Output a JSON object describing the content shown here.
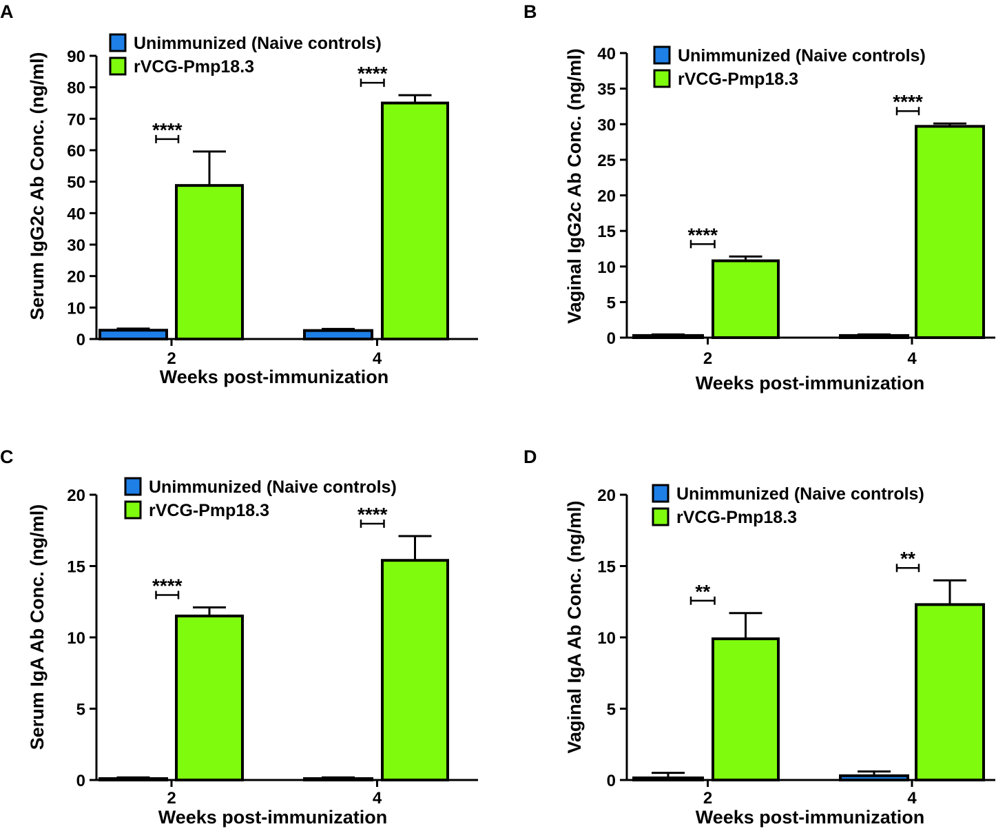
{
  "colors": {
    "unimmunized": "#1e7fe6",
    "vaccine": "#7ffc0e"
  },
  "chart_data": [
    {
      "panel": "A",
      "type": "bar",
      "ylabel": "Serum IgG2c Ab Conc. (ng/ml)",
      "xlabel": "Weeks post-immunization",
      "categories": [
        "2",
        "4"
      ],
      "ylim": [
        0,
        90
      ],
      "yticks": [
        0,
        10,
        20,
        30,
        40,
        50,
        60,
        70,
        80,
        90
      ],
      "legend": [
        "Unimmunized (Naive controls)",
        "rVCG-Pmp18.3"
      ],
      "series": [
        {
          "name": "Unimmunized (Naive controls)",
          "values": [
            2.8,
            2.7
          ],
          "errors": [
            0.5,
            0.5
          ]
        },
        {
          "name": "rVCG-Pmp18.3",
          "values": [
            48.8,
            75.0
          ],
          "errors": [
            10.8,
            2.5
          ]
        }
      ],
      "significance": [
        "****",
        "****"
      ]
    },
    {
      "panel": "B",
      "type": "bar",
      "ylabel": "Vaginal IgG2c Ab Conc. (ng/ml)",
      "xlabel": "Weeks post-immunization",
      "categories": [
        "2",
        "4"
      ],
      "ylim": [
        0,
        40
      ],
      "yticks": [
        0,
        5,
        10,
        15,
        20,
        25,
        30,
        35,
        40
      ],
      "legend": [
        "Unimmunized (Naive controls)",
        "rVCG-Pmp18.3"
      ],
      "series": [
        {
          "name": "Unimmunized (Naive controls)",
          "values": [
            0.3,
            0.3
          ],
          "errors": [
            0.15,
            0.15
          ]
        },
        {
          "name": "rVCG-Pmp18.3",
          "values": [
            10.8,
            29.7
          ],
          "errors": [
            0.6,
            0.4
          ]
        }
      ],
      "significance": [
        "****",
        "****"
      ]
    },
    {
      "panel": "C",
      "type": "bar",
      "ylabel": "Serum IgA Ab Conc. (ng/ml)",
      "xlabel": "Weeks post-immunization",
      "categories": [
        "2",
        "4"
      ],
      "ylim": [
        0,
        20
      ],
      "yticks": [
        0,
        5,
        10,
        15,
        20
      ],
      "legend": [
        "Unimmunized (Naive controls)",
        "rVCG-Pmp18.3"
      ],
      "series": [
        {
          "name": "Unimmunized (Naive controls)",
          "values": [
            0.1,
            0.1
          ],
          "errors": [
            0.08,
            0.08
          ]
        },
        {
          "name": "rVCG-Pmp18.3",
          "values": [
            11.5,
            15.4
          ],
          "errors": [
            0.6,
            1.7
          ]
        }
      ],
      "significance": [
        "****",
        "****"
      ]
    },
    {
      "panel": "D",
      "type": "bar",
      "ylabel": "Vaginal IgA Ab Conc. (ng/ml)",
      "xlabel": "Weeks post-immunization",
      "categories": [
        "2",
        "4"
      ],
      "ylim": [
        0,
        20
      ],
      "yticks": [
        0,
        5,
        10,
        15,
        20
      ],
      "legend": [
        "Unimmunized (Naive controls)",
        "rVCG-Pmp18.3"
      ],
      "series": [
        {
          "name": "Unimmunized (Naive controls)",
          "values": [
            0.15,
            0.3
          ],
          "errors": [
            0.35,
            0.3
          ]
        },
        {
          "name": "rVCG-Pmp18.3",
          "values": [
            9.9,
            12.3
          ],
          "errors": [
            1.8,
            1.7
          ]
        }
      ],
      "significance": [
        "**",
        "**"
      ]
    }
  ]
}
